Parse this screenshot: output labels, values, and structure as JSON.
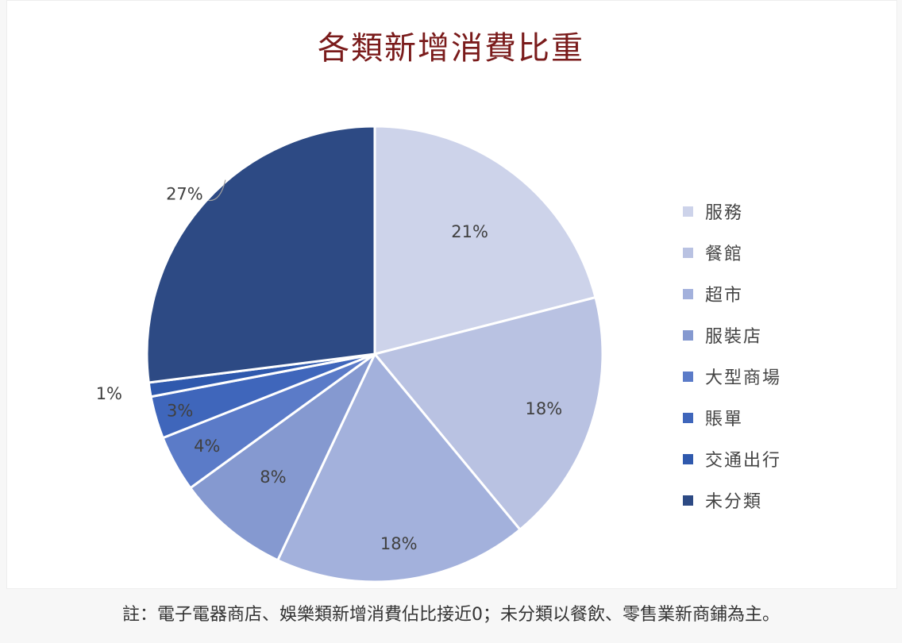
{
  "chart_data": {
    "type": "pie",
    "title": "各類新增消費比重",
    "categories": [
      "服務",
      "餐館",
      "超市",
      "服裝店",
      "大型商場",
      "賬單",
      "交通出行",
      "未分類"
    ],
    "values": [
      21,
      18,
      18,
      8,
      4,
      3,
      1,
      27
    ],
    "labels": [
      "21%",
      "18%",
      "18%",
      "8%",
      "4%",
      "3%",
      "1%",
      "27%"
    ],
    "colors": [
      "#cdd3ea",
      "#b9c2e2",
      "#a3b1dc",
      "#8599d0",
      "#5b7bc8",
      "#3f66bb",
      "#2f59ad",
      "#2d4a84"
    ],
    "legend_position": "right"
  },
  "footnote": "註：電子電器商店、娛樂類新增消費佔比接近0；未分類以餐飲、零售業新商鋪為主。"
}
